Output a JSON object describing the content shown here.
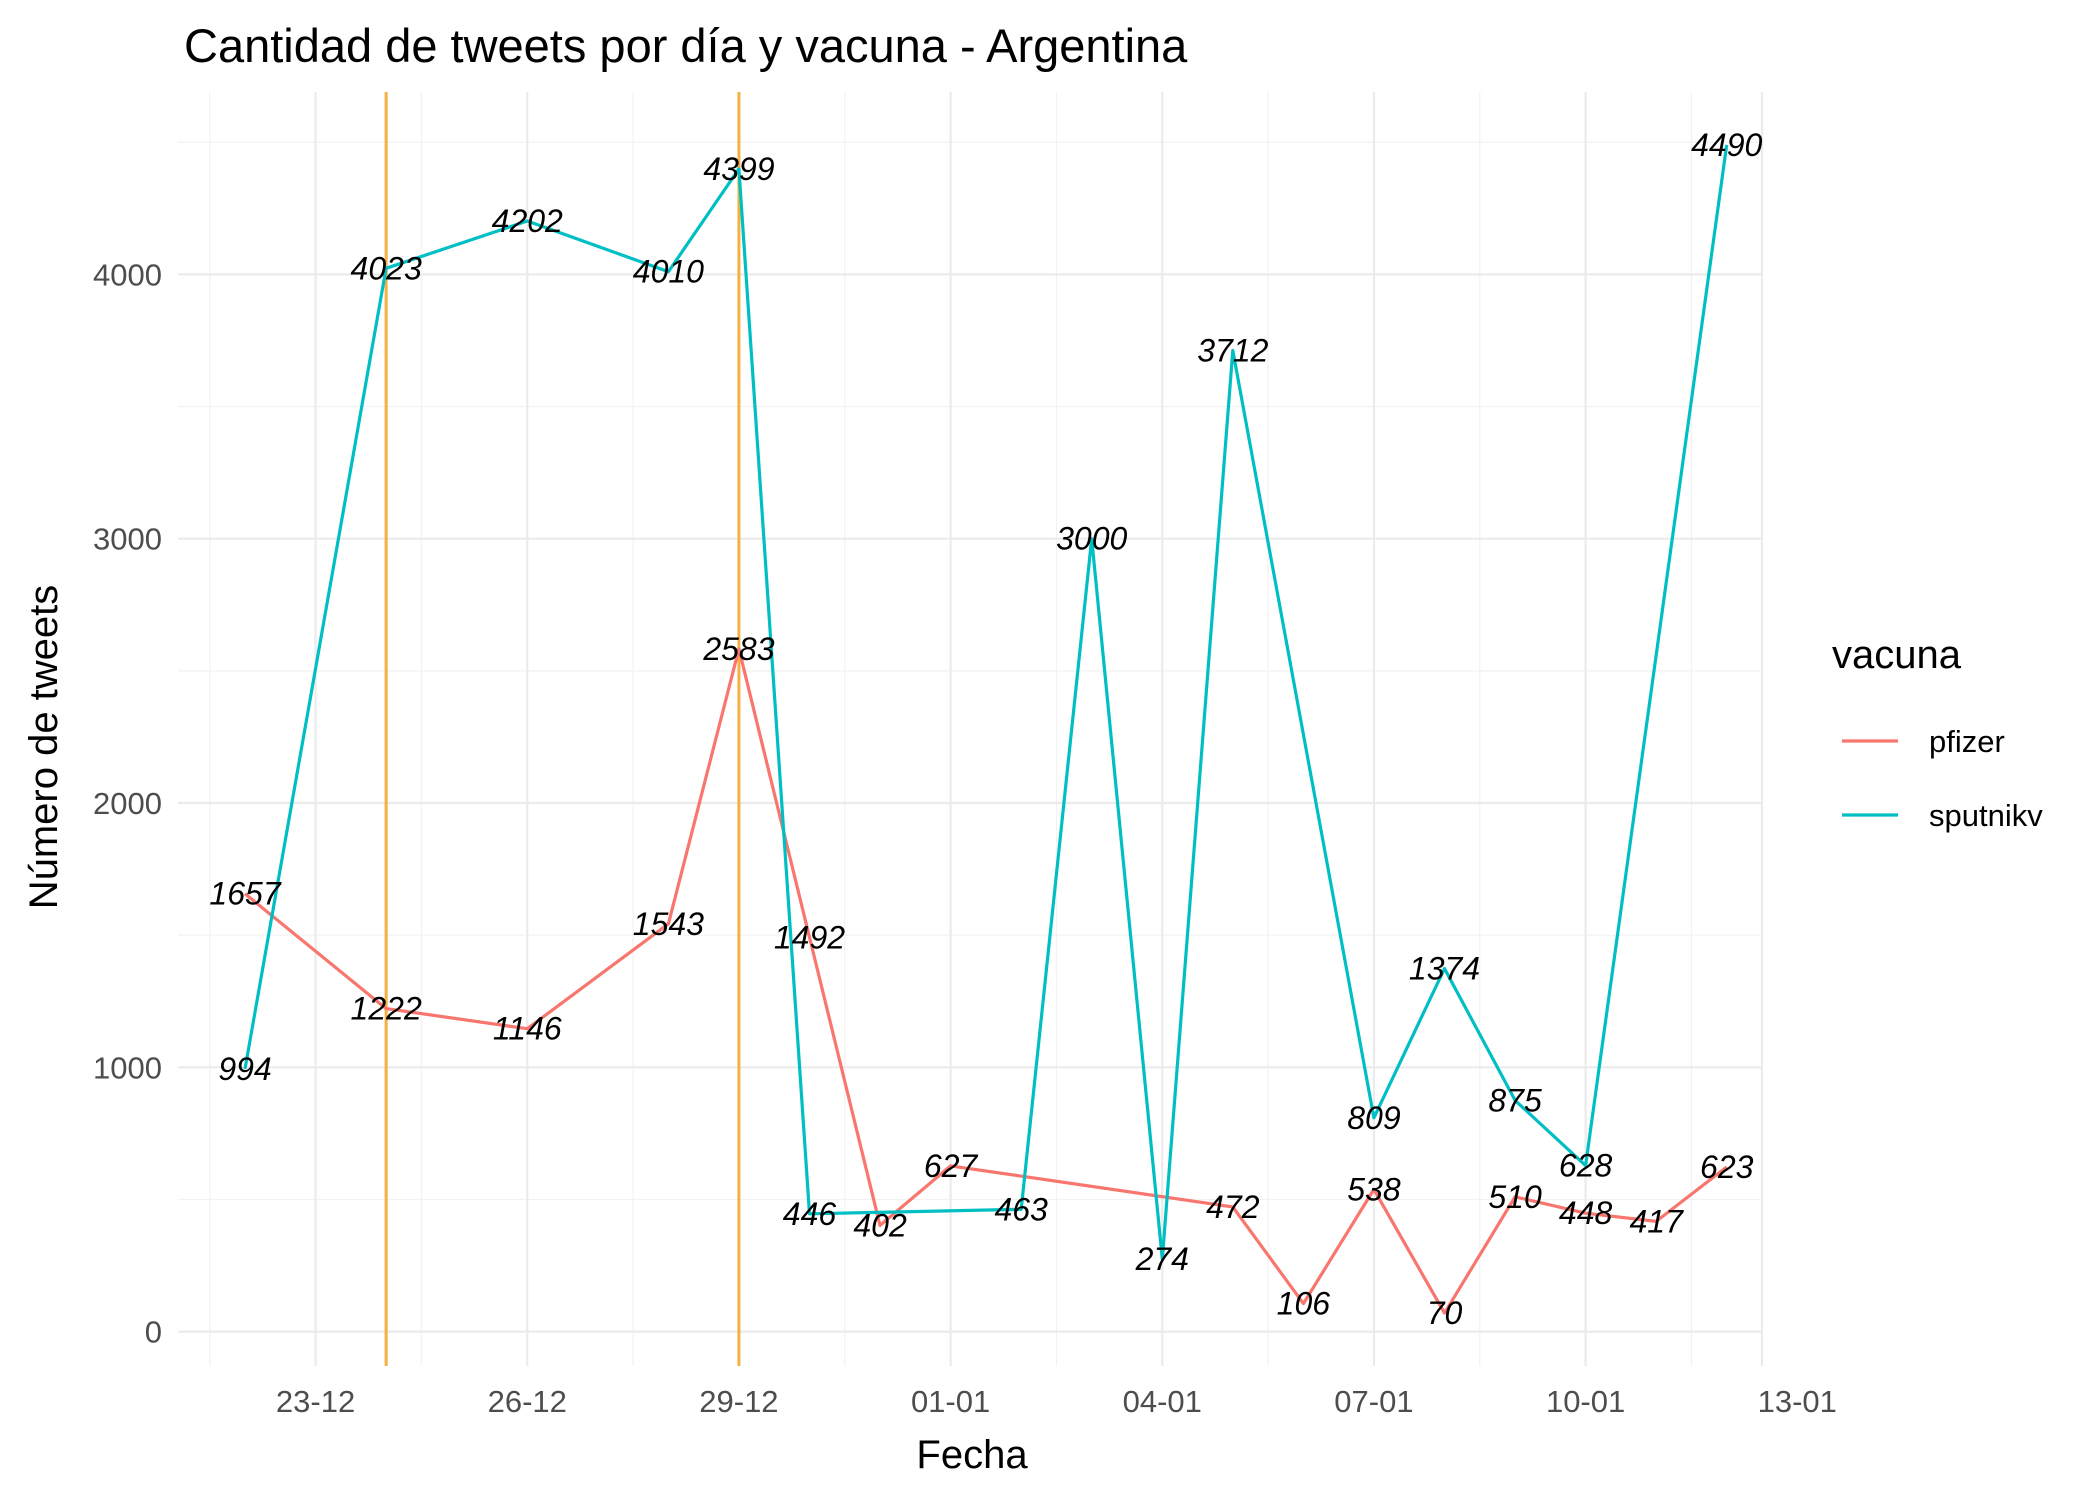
{
  "chart_data": {
    "type": "line",
    "title": "Cantidad de tweets por día y vacuna - Argentina",
    "xlabel": "Fecha",
    "ylabel": "Número de tweets",
    "legend_title": "vacuna",
    "legend_position": "right",
    "grid": true,
    "ylim": [
      -130,
      4690
    ],
    "xlim": [
      -0.95,
      21.5
    ],
    "y_ticks": [
      {
        "value": 0,
        "label": "0"
      },
      {
        "value": 1000,
        "label": "1000"
      },
      {
        "value": 2000,
        "label": "2000"
      },
      {
        "value": 3000,
        "label": "3000"
      },
      {
        "value": 4000,
        "label": "4000"
      }
    ],
    "x_ticks": [
      {
        "value": 1,
        "label": "23-12"
      },
      {
        "value": 4,
        "label": "26-12"
      },
      {
        "value": 7,
        "label": "29-12"
      },
      {
        "value": 10,
        "label": "01-01"
      },
      {
        "value": 13,
        "label": "04-01"
      },
      {
        "value": 16,
        "label": "07-01"
      },
      {
        "value": 19,
        "label": "10-01"
      },
      {
        "value": 22,
        "label": "13-01"
      }
    ],
    "x_note": "x values are days, 0 = 22-12",
    "vlines": [
      {
        "x": 2,
        "color": "#F5B041"
      },
      {
        "x": 7,
        "color": "#F5B041"
      }
    ],
    "series": [
      {
        "name": "pfizer",
        "color": "#F8766D",
        "points": [
          {
            "x": 0,
            "y": 1657
          },
          {
            "x": 2,
            "y": 1222
          },
          {
            "x": 4,
            "y": 1146
          },
          {
            "x": 6,
            "y": 1543
          },
          {
            "x": 7,
            "y": 2583
          },
          {
            "x": 8,
            "y": 1492
          },
          {
            "x": 9,
            "y": 402
          },
          {
            "x": 10,
            "y": 627
          },
          {
            "x": 14,
            "y": 472
          },
          {
            "x": 15,
            "y": 106
          },
          {
            "x": 16,
            "y": 538
          },
          {
            "x": 17,
            "y": 70
          },
          {
            "x": 18,
            "y": 510
          },
          {
            "x": 19,
            "y": 448
          },
          {
            "x": 20,
            "y": 417
          },
          {
            "x": 21,
            "y": 623
          }
        ]
      },
      {
        "name": "sputnikv",
        "color": "#00BFC4",
        "points": [
          {
            "x": 0,
            "y": 994
          },
          {
            "x": 2,
            "y": 4023
          },
          {
            "x": 4,
            "y": 4202
          },
          {
            "x": 6,
            "y": 4010
          },
          {
            "x": 7,
            "y": 4399
          },
          {
            "x": 8,
            "y": 446
          },
          {
            "x": 11,
            "y": 463
          },
          {
            "x": 12,
            "y": 3000
          },
          {
            "x": 13,
            "y": 274
          },
          {
            "x": 14,
            "y": 3712
          },
          {
            "x": 16,
            "y": 809
          },
          {
            "x": 17,
            "y": 1374
          },
          {
            "x": 18,
            "y": 875
          },
          {
            "x": 19,
            "y": 628
          },
          {
            "x": 21,
            "y": 4490
          }
        ]
      }
    ]
  }
}
